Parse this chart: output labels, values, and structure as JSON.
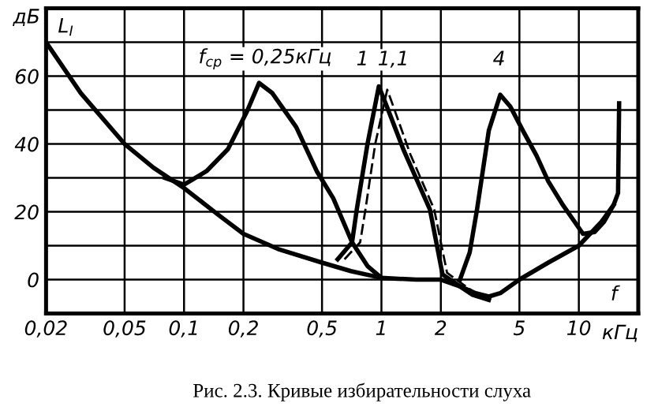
{
  "chart_data": {
    "type": "line",
    "title": "Рис. 2.3. Кривые избирательности слуха",
    "ylabel": "дБ",
    "xlabel": "кГц",
    "annotations": [
      "L$_{I}$",
      "f",
      "f$_{ср}$ = 0,25кГц",
      "1",
      "1,1",
      "4"
    ],
    "log": "x",
    "xlim": [
      0.02,
      20
    ],
    "ylim": [
      -10,
      80
    ],
    "xticks": [
      {
        "value": 0.02,
        "label": "0,02"
      },
      {
        "value": 0.05,
        "label": "0,05"
      },
      {
        "value": 0.1,
        "label": "0,1"
      },
      {
        "value": 0.2,
        "label": "0,2"
      },
      {
        "value": 0.5,
        "label": "0,5"
      },
      1,
      2,
      5,
      10
    ],
    "yticks": [
      {
        "value": -10,
        "label": null
      },
      0,
      {
        "value": 10,
        "label": null
      },
      20,
      {
        "value": 30,
        "label": null
      },
      40,
      {
        "value": 50,
        "label": null
      },
      60,
      {
        "value": 70,
        "label": null
      }
    ],
    "grid": true,
    "legend": false,
    "marker": "none",
    "series": [
      {
        "color": "#000000",
        "line_style": "solid",
        "x": [
          0.02,
          0.03,
          0.05,
          0.07,
          0.1,
          0.15,
          0.2,
          0.3,
          0.5,
          0.7,
          1,
          1.5,
          2,
          2.5,
          3,
          3.5,
          4,
          5,
          7,
          10,
          13,
          15
        ],
        "values": [
          70,
          55,
          40,
          33,
          27,
          19,
          13.5,
          9,
          5,
          2.5,
          0.5,
          0,
          0,
          -2,
          -4,
          -5,
          -4,
          0,
          5,
          10,
          17,
          22
        ]
      },
      {
        "color": "#000000",
        "line_style": "solid",
        "x": [
          0.08,
          0.1,
          0.13,
          0.167,
          0.208,
          0.24,
          0.28,
          0.37,
          0.47,
          0.57,
          0.71,
          0.85,
          1
        ],
        "values": [
          30,
          28,
          32,
          38.5,
          49.5,
          58,
          55,
          45,
          32,
          24,
          11,
          4,
          0.5
        ]
      },
      {
        "color": "#000000",
        "line_style": "solid",
        "x": [
          0.6,
          0.71,
          0.75,
          0.85,
          0.97,
          1.05,
          1.3,
          1.76,
          2.04,
          2.5,
          2.9,
          3.5
        ],
        "values": [
          6,
          11,
          20.7,
          40,
          57,
          52,
          38,
          20.7,
          1.5,
          -2,
          -4.5,
          -6
        ]
      },
      {
        "color": "#000000",
        "line_style": "dashed",
        "x": [
          0.65,
          0.78,
          0.83,
          0.93,
          1.07,
          1.15,
          1.4,
          1.85,
          2.15,
          2.6,
          3,
          3.6
        ],
        "values": [
          6,
          11,
          20.7,
          40,
          56,
          51,
          37,
          20.7,
          2,
          -1.5,
          -4,
          -5.5
        ]
      },
      {
        "color": "#000000",
        "line_style": "solid",
        "x": [
          2.5,
          2.8,
          3.05,
          3.5,
          4.0,
          4.5,
          5.2,
          6.1,
          7,
          8.3,
          10.5,
          12,
          13.4,
          15,
          15.8,
          16
        ],
        "values": [
          0,
          8,
          20.7,
          44,
          54.5,
          51,
          44,
          36.6,
          29,
          22,
          13.5,
          14,
          17,
          22,
          25.5,
          52
        ]
      }
    ]
  }
}
